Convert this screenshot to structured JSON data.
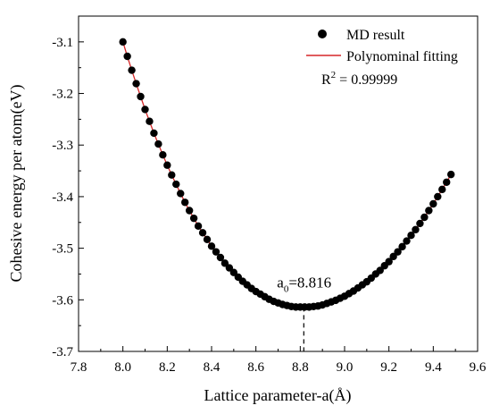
{
  "chart_data": {
    "type": "scatter",
    "title": "",
    "xlabel": "Lattice parameter-a(Å)",
    "ylabel": "Cohesive energy per atom(eV)",
    "xlim": [
      7.8,
      9.6
    ],
    "ylim": [
      -3.7,
      -3.05
    ],
    "xticks": [
      "7.8",
      "8.0",
      "8.2",
      "8.4",
      "8.6",
      "8.8",
      "9.0",
      "9.2",
      "9.4",
      "9.6"
    ],
    "yticks": [
      "-3.7",
      "-3.6",
      "-3.5",
      "-3.4",
      "-3.3",
      "-3.2",
      "-3.1"
    ],
    "grid": false,
    "legend_position": "top-right",
    "legend": [
      {
        "label": "MD result",
        "marker": "circle",
        "color": "#000000"
      },
      {
        "label": "Polynominal fitting",
        "marker": "line",
        "color": "#d62728"
      }
    ],
    "r_squared_label": "R",
    "r_squared_sup": "2",
    "r_squared_value": " = 0.99999",
    "annotation": {
      "prefix": "a",
      "subscript": "0",
      "text": "=8.816",
      "x": 8.816
    },
    "fit_color": "#d62728",
    "marker_color": "#000000",
    "series": [
      {
        "name": "MD result",
        "x": [
          8.0,
          8.02,
          8.04,
          8.06,
          8.08,
          8.1,
          8.12,
          8.14,
          8.16,
          8.18,
          8.2,
          8.22,
          8.24,
          8.26,
          8.28,
          8.3,
          8.32,
          8.34,
          8.36,
          8.38,
          8.4,
          8.42,
          8.44,
          8.46,
          8.48,
          8.5,
          8.52,
          8.54,
          8.56,
          8.58,
          8.6,
          8.62,
          8.64,
          8.66,
          8.68,
          8.7,
          8.72,
          8.74,
          8.76,
          8.78,
          8.8,
          8.82,
          8.84,
          8.86,
          8.88,
          8.9,
          8.92,
          8.94,
          8.96,
          8.98,
          9.0,
          9.02,
          9.04,
          9.06,
          9.08,
          9.1,
          9.12,
          9.14,
          9.16,
          9.18,
          9.2,
          9.22,
          9.24,
          9.26,
          9.28,
          9.3,
          9.32,
          9.34,
          9.36,
          9.38,
          9.4,
          9.42,
          9.44,
          9.46,
          9.48
        ],
        "y": [
          -3.1,
          -3.128,
          -3.155,
          -3.181,
          -3.206,
          -3.231,
          -3.254,
          -3.277,
          -3.298,
          -3.319,
          -3.339,
          -3.358,
          -3.376,
          -3.394,
          -3.411,
          -3.427,
          -3.442,
          -3.457,
          -3.47,
          -3.483,
          -3.496,
          -3.507,
          -3.518,
          -3.529,
          -3.538,
          -3.547,
          -3.556,
          -3.564,
          -3.571,
          -3.578,
          -3.584,
          -3.589,
          -3.594,
          -3.599,
          -3.603,
          -3.606,
          -3.609,
          -3.611,
          -3.613,
          -3.614,
          -3.614,
          -3.614,
          -3.614,
          -3.613,
          -3.612,
          -3.61,
          -3.607,
          -3.604,
          -3.601,
          -3.597,
          -3.593,
          -3.588,
          -3.583,
          -3.577,
          -3.571,
          -3.565,
          -3.558,
          -3.55,
          -3.543,
          -3.534,
          -3.526,
          -3.516,
          -3.507,
          -3.497,
          -3.486,
          -3.475,
          -3.464,
          -3.452,
          -3.44,
          -3.427,
          -3.414,
          -3.4,
          -3.386,
          -3.372,
          -3.357
        ]
      }
    ]
  }
}
